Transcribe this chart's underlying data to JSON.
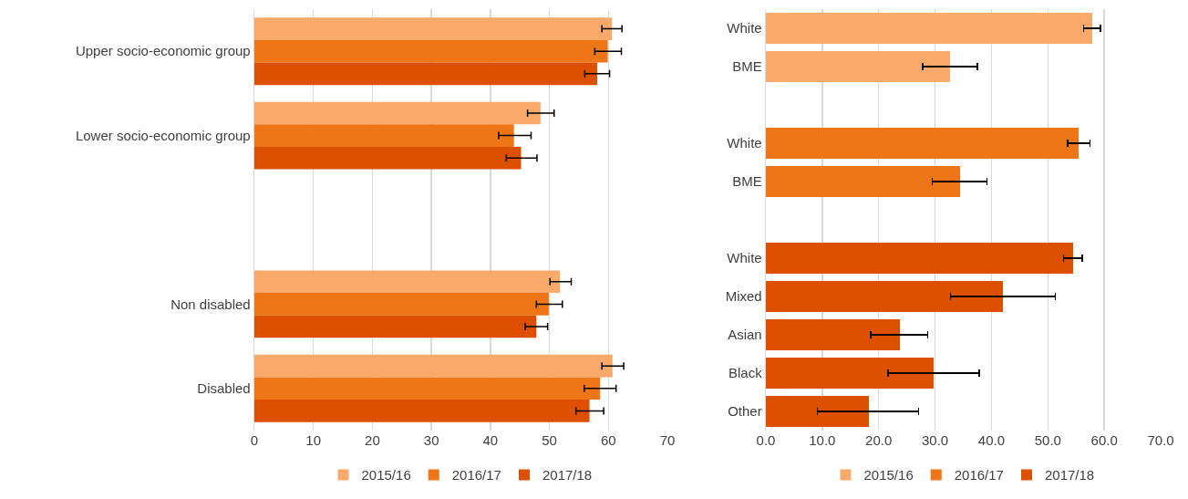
{
  "chart_data": [
    {
      "type": "bar",
      "orientation": "horizontal",
      "categories": [
        "Upper socio-economic group",
        "Lower socio-economic group",
        null,
        "Non disabled",
        "Disabled"
      ],
      "series": [
        {
          "name": "2015/16",
          "color": "#f9a96a",
          "values": [
            60.6,
            48.5,
            null,
            51.8,
            60.7
          ],
          "errors": [
            [
              58.9,
              62.3
            ],
            [
              46.3,
              50.8
            ],
            null,
            [
              50.1,
              53.7
            ],
            [
              58.9,
              62.6
            ]
          ]
        },
        {
          "name": "2016/17",
          "color": "#ee7617",
          "values": [
            59.9,
            44.0,
            null,
            49.9,
            58.6
          ],
          "errors": [
            [
              57.7,
              62.2
            ],
            [
              41.4,
              46.9
            ],
            null,
            [
              47.8,
              52.2
            ],
            [
              55.9,
              61.3
            ]
          ]
        },
        {
          "name": "2017/18",
          "color": "#dc5000",
          "values": [
            58.1,
            45.2,
            null,
            47.8,
            56.8
          ],
          "errors": [
            [
              56.0,
              60.2
            ],
            [
              42.7,
              47.9
            ],
            null,
            [
              45.9,
              49.7
            ],
            [
              54.5,
              59.2
            ]
          ]
        }
      ],
      "xlim": [
        0,
        70
      ],
      "xticks": [
        0,
        10,
        20,
        30,
        40,
        50,
        60,
        70
      ],
      "grid": "x",
      "legend": "bottom"
    },
    {
      "type": "bar",
      "orientation": "horizontal",
      "stacked": true,
      "categories": [
        "White",
        "BME",
        null,
        "White",
        "BME",
        null,
        "White",
        "Mixed",
        "Asian",
        "Black",
        "Other"
      ],
      "series": [
        {
          "name": "2015/16",
          "color": "#f9a96a",
          "values": [
            57.8,
            32.7,
            null,
            null,
            null,
            null,
            null,
            null,
            null,
            null,
            null
          ],
          "errors": [
            [
              56.3,
              59.3
            ],
            [
              27.8,
              37.5
            ],
            null,
            null,
            null,
            null,
            null,
            null,
            null,
            null,
            null
          ]
        },
        {
          "name": "2016/17",
          "color": "#ee7617",
          "values": [
            null,
            null,
            null,
            55.5,
            34.5,
            null,
            null,
            null,
            null,
            null,
            null
          ],
          "errors": [
            null,
            null,
            null,
            [
              53.5,
              57.5
            ],
            [
              29.5,
              39.2
            ],
            null,
            null,
            null,
            null,
            null,
            null
          ]
        },
        {
          "name": "2017/18",
          "color": "#dc5000",
          "values": [
            null,
            null,
            null,
            null,
            null,
            null,
            54.5,
            42.1,
            23.7,
            29.7,
            18.2
          ],
          "errors": [
            null,
            null,
            null,
            null,
            null,
            null,
            [
              52.8,
              56.1
            ],
            [
              32.7,
              51.3
            ],
            [
              18.6,
              28.7
            ],
            [
              21.7,
              37.8
            ],
            [
              9.1,
              27.1
            ]
          ]
        }
      ],
      "xlim": [
        0,
        70
      ],
      "xticks": [
        {
          "value": 0,
          "label": "0.0"
        },
        {
          "value": 10,
          "label": "10.0"
        },
        {
          "value": 20,
          "label": "20.0"
        },
        {
          "value": 30,
          "label": "30.0"
        },
        {
          "value": 40,
          "label": "40.0"
        },
        {
          "value": 50,
          "label": "50.0"
        },
        {
          "value": 60,
          "label": "60.0"
        },
        {
          "value": 70,
          "label": "70.0"
        }
      ],
      "grid": "x",
      "legend": "bottom"
    }
  ]
}
